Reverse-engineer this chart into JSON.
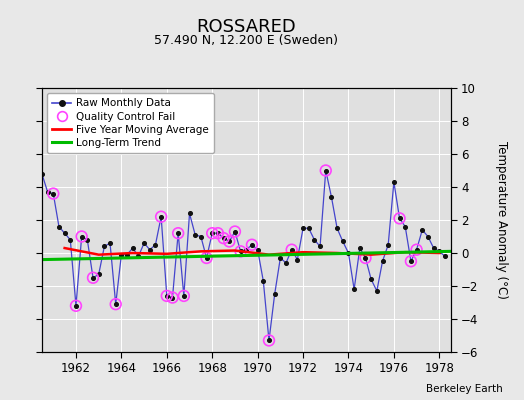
{
  "title": "ROSSARED",
  "subtitle": "57.490 N, 12.200 E (Sweden)",
  "ylabel": "Temperature Anomaly (°C)",
  "credit": "Berkeley Earth",
  "xlim": [
    1960.5,
    1978.5
  ],
  "ylim": [
    -6,
    10
  ],
  "yticks": [
    -6,
    -4,
    -2,
    0,
    2,
    4,
    6,
    8,
    10
  ],
  "xticks": [
    1962,
    1964,
    1966,
    1968,
    1970,
    1972,
    1974,
    1976,
    1978
  ],
  "fig_bg_color": "#e8e8e8",
  "plot_bg_color": "#e0e0e0",
  "raw_x": [
    1960.5,
    1960.75,
    1961.0,
    1961.25,
    1961.5,
    1961.75,
    1962.0,
    1962.25,
    1962.5,
    1962.75,
    1963.0,
    1963.25,
    1963.5,
    1963.75,
    1964.0,
    1964.25,
    1964.5,
    1964.75,
    1965.0,
    1965.25,
    1965.5,
    1965.75,
    1966.0,
    1966.25,
    1966.5,
    1966.75,
    1967.0,
    1967.25,
    1967.5,
    1967.75,
    1968.0,
    1968.25,
    1968.5,
    1968.75,
    1969.0,
    1969.25,
    1969.5,
    1969.75,
    1970.0,
    1970.25,
    1970.5,
    1970.75,
    1971.0,
    1971.25,
    1971.5,
    1971.75,
    1972.0,
    1972.25,
    1972.5,
    1972.75,
    1973.0,
    1973.25,
    1973.5,
    1973.75,
    1974.0,
    1974.25,
    1974.5,
    1974.75,
    1975.0,
    1975.25,
    1975.5,
    1975.75,
    1976.0,
    1976.25,
    1976.5,
    1976.75,
    1977.0,
    1977.25,
    1977.5,
    1977.75,
    1978.0,
    1978.25
  ],
  "raw_y": [
    4.8,
    3.7,
    3.6,
    1.6,
    1.2,
    0.8,
    -3.2,
    1.0,
    0.8,
    -1.5,
    -1.3,
    0.4,
    0.6,
    -3.1,
    -0.1,
    -0.1,
    0.3,
    -0.2,
    0.6,
    0.2,
    0.5,
    2.2,
    -2.6,
    -2.7,
    1.2,
    -2.6,
    2.4,
    1.1,
    1.0,
    -0.3,
    1.2,
    1.2,
    0.9,
    0.7,
    1.3,
    0.1,
    0.2,
    0.5,
    0.2,
    -1.7,
    -5.3,
    -2.5,
    -0.3,
    -0.6,
    0.2,
    -0.4,
    1.5,
    1.5,
    0.8,
    0.4,
    5.0,
    3.4,
    1.5,
    0.7,
    0.0,
    -2.2,
    0.3,
    -0.3,
    -1.6,
    -2.3,
    -0.5,
    0.5,
    4.3,
    2.1,
    1.6,
    -0.5,
    0.2,
    1.4,
    1.0,
    0.3,
    0.1,
    -0.2
  ],
  "qc_fail_x": [
    1961.0,
    1962.0,
    1962.25,
    1962.75,
    1963.75,
    1965.75,
    1966.0,
    1966.25,
    1966.5,
    1966.75,
    1967.75,
    1968.0,
    1968.25,
    1968.5,
    1968.75,
    1969.0,
    1969.25,
    1969.75,
    1970.5,
    1971.5,
    1973.0,
    1974.75,
    1976.25,
    1976.75,
    1977.0
  ],
  "qc_fail_y": [
    3.6,
    -3.2,
    1.0,
    -1.5,
    -3.1,
    2.2,
    -2.6,
    -2.7,
    1.2,
    -2.6,
    -0.3,
    1.2,
    1.2,
    0.9,
    0.7,
    1.3,
    0.1,
    0.5,
    -5.3,
    0.2,
    5.0,
    -0.3,
    2.1,
    -0.5,
    0.2
  ],
  "moving_avg_x": [
    1961.5,
    1963.0,
    1964.5,
    1966.0,
    1967.5,
    1969.0,
    1970.5,
    1972.0,
    1973.5,
    1975.0,
    1976.5,
    1978.0
  ],
  "moving_avg_y": [
    0.3,
    -0.1,
    0.0,
    -0.05,
    0.1,
    0.15,
    -0.1,
    0.05,
    0.0,
    -0.1,
    0.05,
    0.0
  ],
  "trend_x": [
    1960.5,
    1978.5
  ],
  "trend_y": [
    -0.4,
    0.1
  ],
  "line_color": "#4444cc",
  "dot_color": "#111111",
  "qc_color": "#ff44ff",
  "moving_avg_color": "#ff0000",
  "trend_color": "#00bb00"
}
